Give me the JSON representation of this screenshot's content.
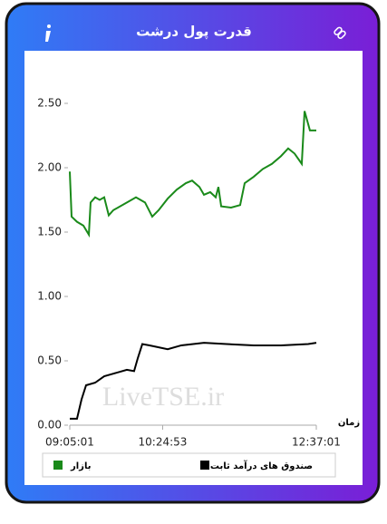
{
  "header": {
    "title": "قدرت پول درشت"
  },
  "chart_data": {
    "type": "line",
    "x_label": "زمان",
    "watermark": "LiveTSE.ir",
    "xlim": [
      "09:05:01",
      "12:37:01"
    ],
    "xticks": [
      "09:05:01",
      "10:24:53",
      "12:37:01"
    ],
    "ylim": [
      0,
      2.5
    ],
    "yticks": [
      {
        "value": 0,
        "label": "0.00"
      },
      {
        "value": 0.5,
        "label": "0.50"
      },
      {
        "value": 1,
        "label": "1.00"
      },
      {
        "value": 1.5,
        "label": "1.50"
      },
      {
        "value": 2,
        "label": "2.00"
      },
      {
        "value": 2.5,
        "label": "2.50"
      }
    ],
    "series": [
      {
        "name": "بازار",
        "color": "#1a8a1a",
        "x": [
          "09:05:01",
          "09:06:34",
          "09:11:13",
          "09:16:43",
          "09:21:25",
          "09:22:55",
          "09:26:49",
          "09:30:43",
          "09:34:37",
          "09:38:31",
          "09:42:25",
          "09:54:07",
          "10:01:55",
          "10:09:43",
          "10:15:55",
          "10:21:25",
          "10:29:13",
          "10:37:01",
          "10:44:49",
          "10:50:13",
          "10:56:31",
          "11:00:25",
          "11:05:49",
          "11:10:31",
          "11:12:49",
          "11:15:13",
          "11:23:43",
          "11:31:31",
          "11:35:25",
          "11:43:13",
          "11:51:01",
          "11:58:49",
          "12:06:37",
          "12:12:49",
          "12:18:19",
          "12:24:31",
          "12:26:55",
          "12:31:31",
          "12:37:01"
        ],
        "values": [
          1.97,
          1.62,
          1.58,
          1.55,
          1.48,
          1.73,
          1.77,
          1.75,
          1.77,
          1.63,
          1.67,
          1.73,
          1.77,
          1.73,
          1.62,
          1.67,
          1.76,
          1.83,
          1.88,
          1.9,
          1.85,
          1.79,
          1.81,
          1.77,
          1.85,
          1.7,
          1.69,
          1.71,
          1.88,
          1.93,
          1.99,
          2.03,
          2.09,
          2.15,
          2.11,
          2.03,
          2.44,
          2.29,
          2.29
        ]
      },
      {
        "name": "صندوق های درآمد ثابت",
        "color": "#000000",
        "x": [
          "09:05:01",
          "09:11:13",
          "09:15:07",
          "09:19:01",
          "09:26:49",
          "09:34:37",
          "09:42:25",
          "09:54:07",
          "10:00:19",
          "10:03:29",
          "10:07:23",
          "10:13:37",
          "10:29:13",
          "10:40:55",
          "11:00:25",
          "11:19:49",
          "11:43:13",
          "12:06:37",
          "12:30:01",
          "12:37:01"
        ],
        "values": [
          0.05,
          0.05,
          0.2,
          0.31,
          0.33,
          0.38,
          0.4,
          0.43,
          0.42,
          0.52,
          0.63,
          0.62,
          0.59,
          0.62,
          0.64,
          0.63,
          0.62,
          0.62,
          0.63,
          0.64
        ]
      }
    ]
  }
}
